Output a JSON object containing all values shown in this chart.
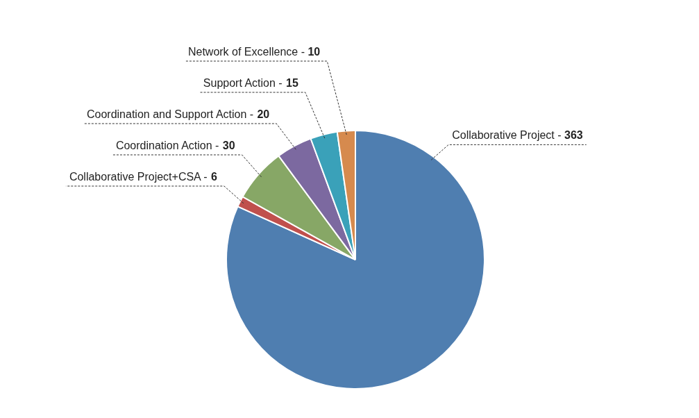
{
  "chart_data": {
    "type": "pie",
    "categories": [
      "Collaborative Project -",
      "Collaborative Project+CSA -",
      "Coordination Action -",
      "Coordination and Support Action -",
      "Support Action -",
      "Network of Excellence -"
    ],
    "values": [
      363,
      6,
      30,
      20,
      15,
      10
    ],
    "colors": [
      "#4f7eb0",
      "#c0504d",
      "#87a766",
      "#7c69a0",
      "#3aa1b9",
      "#d68a4e"
    ],
    "data_labels": true
  }
}
